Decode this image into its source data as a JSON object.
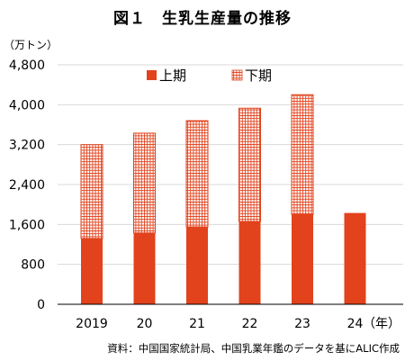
{
  "title": "図１　生乳生産量の推移",
  "source": "資料：中国国家統計局、中国乳業年鑑のデータを基にALIC作成",
  "colors": {
    "first_half": "#e2421c",
    "second_half_grid": "#e2421c",
    "axis": "#000000",
    "gridline": "#d9d9d9"
  },
  "chart_data": {
    "type": "bar",
    "stacked": true,
    "title": "図１　生乳生産量の推移",
    "ylabel": "（万トン）",
    "xlabel": "（年）",
    "categories": [
      "2019",
      "20",
      "21",
      "22",
      "23",
      "24"
    ],
    "series": [
      {
        "name": "上期",
        "values": [
          1320,
          1430,
          1550,
          1660,
          1800,
          1830
        ],
        "pattern": "solid"
      },
      {
        "name": "下期",
        "values": [
          1880,
          2000,
          2130,
          2270,
          2400,
          null
        ],
        "pattern": "grid"
      }
    ],
    "ylim": [
      0,
      4800
    ],
    "yticks": [
      0,
      800,
      1600,
      2400,
      3200,
      4000,
      4800
    ],
    "ytick_labels": [
      "0",
      "800",
      "1,600",
      "2,400",
      "3,200",
      "4,000",
      "4,800"
    ],
    "grid": true,
    "legend_position": "top-center"
  }
}
